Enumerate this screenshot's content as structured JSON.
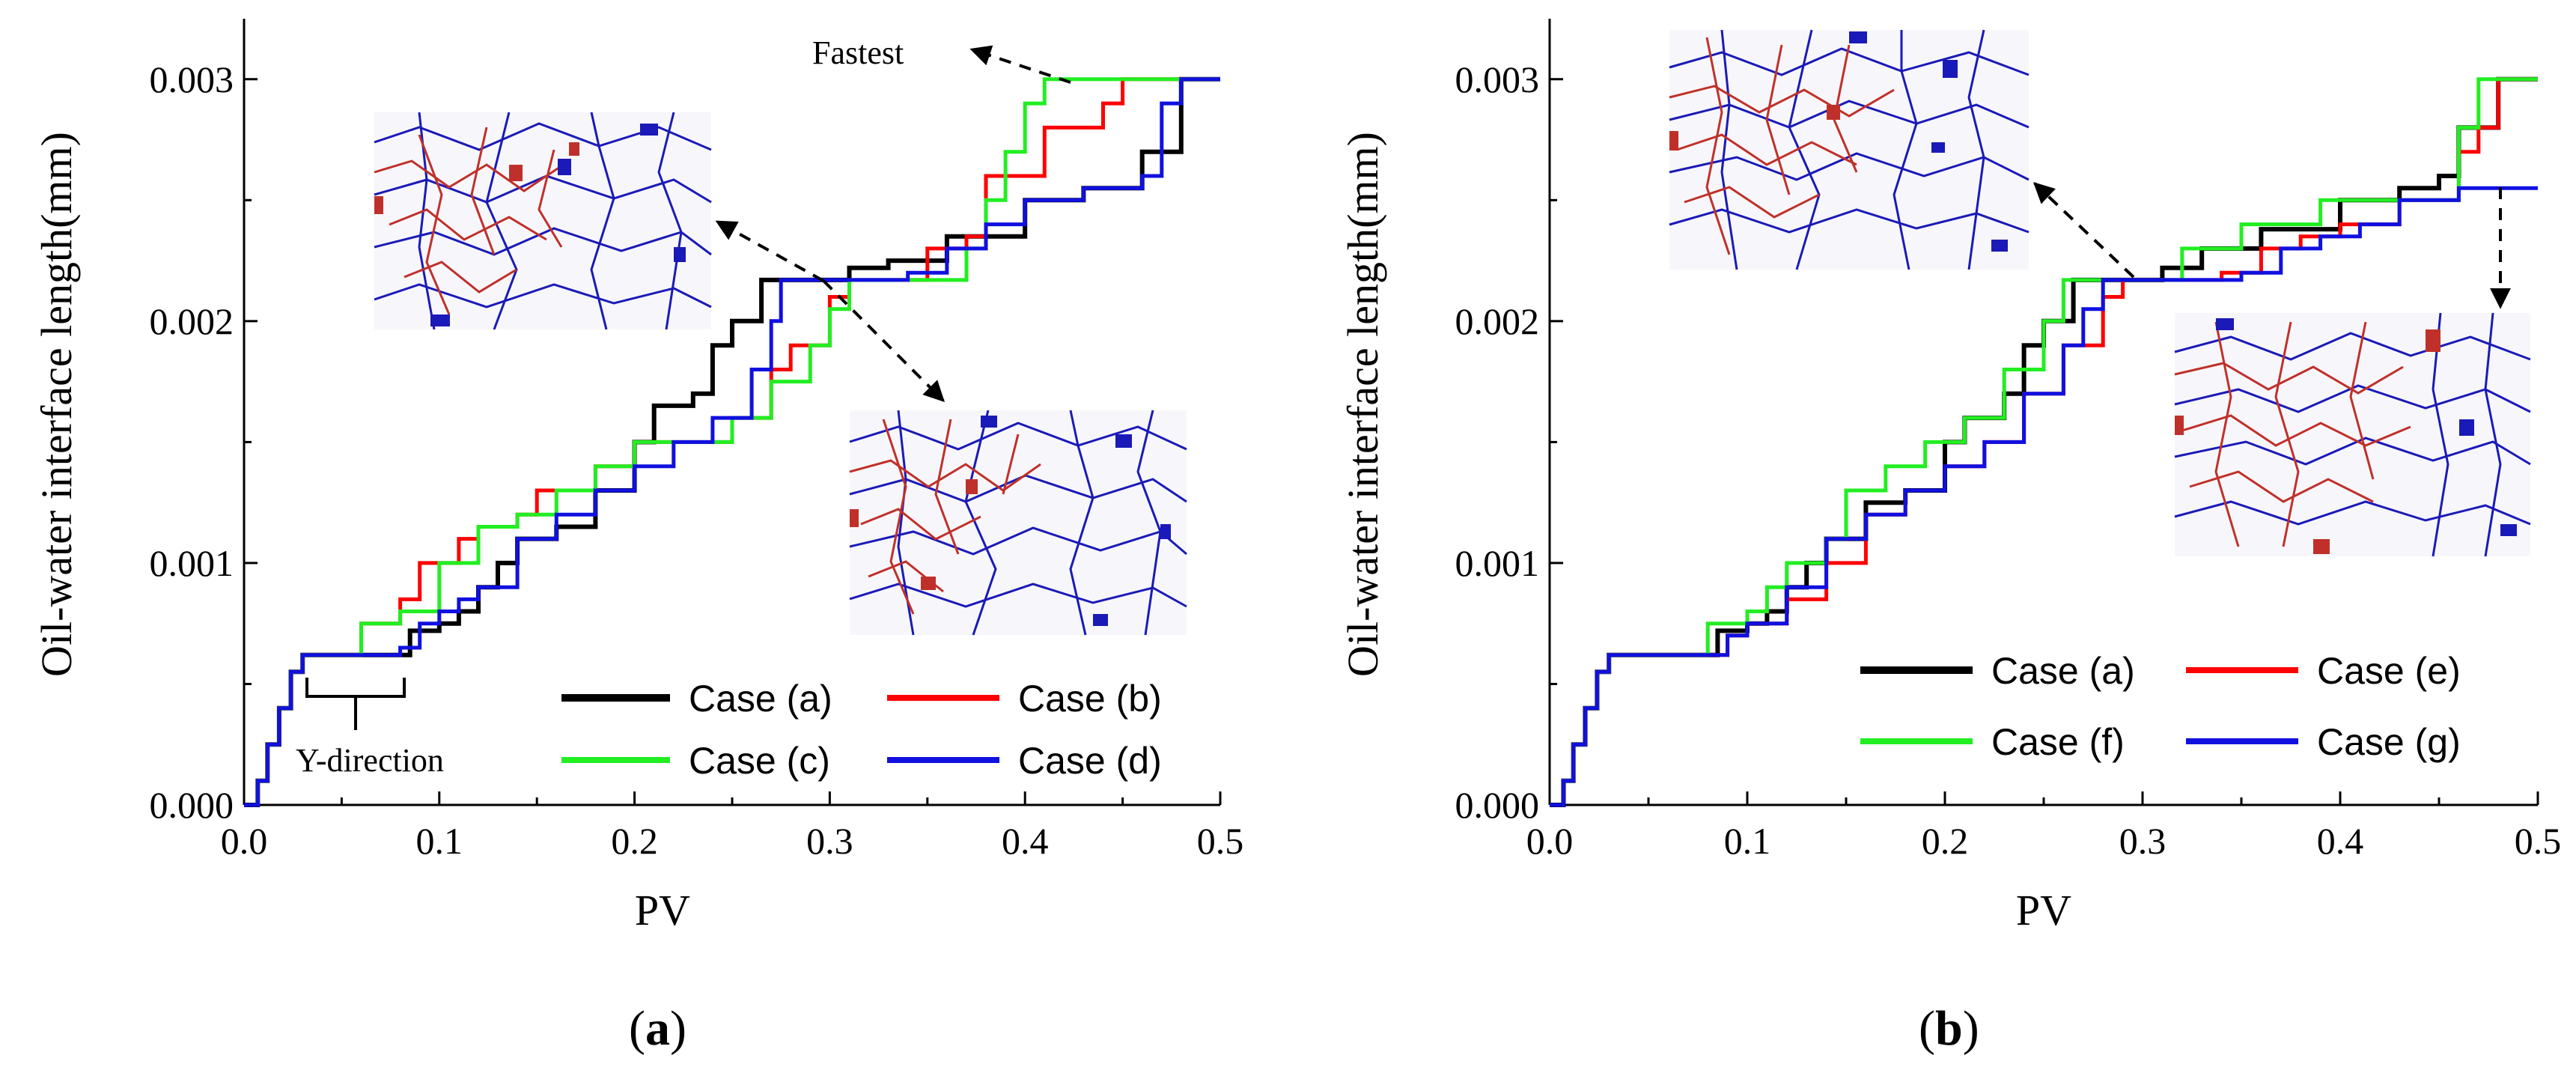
{
  "chart_data": [
    {
      "panel": "(a)",
      "panel_letter": "a",
      "type": "line",
      "xlabel": "PV",
      "ylabel": "Oil-water interface length(mm)",
      "xlim": [
        0,
        0.5
      ],
      "ylim": [
        0,
        0.00325
      ],
      "xticks": [
        0.0,
        0.1,
        0.2,
        0.3,
        0.4,
        0.5
      ],
      "xtick_labels": [
        "0.0",
        "0.1",
        "0.2",
        "0.3",
        "0.4",
        "0.5"
      ],
      "yticks": [
        0,
        0.001,
        0.002,
        0.003
      ],
      "ytick_labels": [
        "0.000",
        "0.001",
        "0.002",
        "0.003"
      ],
      "annotations": [
        "Fastest",
        "Y-direction"
      ],
      "insets": [
        "pore network snapshot (upper)",
        "pore network snapshot (lower)"
      ],
      "series": [
        {
          "name": "Case (a)",
          "color": "#000000",
          "points": [
            [
              0,
              0
            ],
            [
              0.007,
              0.0001
            ],
            [
              0.012,
              0.00025
            ],
            [
              0.018,
              0.0004
            ],
            [
              0.024,
              0.00055
            ],
            [
              0.03,
              0.00062
            ],
            [
              0.08,
              0.00062
            ],
            [
              0.085,
              0.00072
            ],
            [
              0.1,
              0.00075
            ],
            [
              0.11,
              0.0008
            ],
            [
              0.12,
              0.0009
            ],
            [
              0.13,
              0.001
            ],
            [
              0.14,
              0.0011
            ],
            [
              0.16,
              0.00115
            ],
            [
              0.18,
              0.0013
            ],
            [
              0.2,
              0.0015
            ],
            [
              0.21,
              0.00165
            ],
            [
              0.23,
              0.0017
            ],
            [
              0.24,
              0.0019
            ],
            [
              0.25,
              0.002
            ],
            [
              0.265,
              0.00217
            ],
            [
              0.3,
              0.00217
            ],
            [
              0.31,
              0.00222
            ],
            [
              0.33,
              0.00225
            ],
            [
              0.36,
              0.00235
            ],
            [
              0.4,
              0.0025
            ],
            [
              0.43,
              0.00255
            ],
            [
              0.46,
              0.0027
            ],
            [
              0.48,
              0.003
            ],
            [
              0.5,
              0.003
            ]
          ]
        },
        {
          "name": "Case (b)",
          "color": "#ff0000",
          "points": [
            [
              0,
              0
            ],
            [
              0.007,
              0.0001
            ],
            [
              0.012,
              0.00025
            ],
            [
              0.018,
              0.0004
            ],
            [
              0.024,
              0.00055
            ],
            [
              0.03,
              0.00062
            ],
            [
              0.055,
              0.00062
            ],
            [
              0.06,
              0.00075
            ],
            [
              0.08,
              0.00085
            ],
            [
              0.09,
              0.001
            ],
            [
              0.1,
              0.001
            ],
            [
              0.11,
              0.0011
            ],
            [
              0.12,
              0.00115
            ],
            [
              0.14,
              0.0012
            ],
            [
              0.15,
              0.0013
            ],
            [
              0.18,
              0.0014
            ],
            [
              0.2,
              0.0015
            ],
            [
              0.22,
              0.0015
            ],
            [
              0.25,
              0.0016
            ],
            [
              0.27,
              0.0018
            ],
            [
              0.28,
              0.0019
            ],
            [
              0.3,
              0.0021
            ],
            [
              0.31,
              0.00217
            ],
            [
              0.34,
              0.00217
            ],
            [
              0.35,
              0.0023
            ],
            [
              0.37,
              0.00235
            ],
            [
              0.38,
              0.0026
            ],
            [
              0.4,
              0.0026
            ],
            [
              0.41,
              0.0028
            ],
            [
              0.44,
              0.0029
            ],
            [
              0.45,
              0.003
            ],
            [
              0.5,
              0.003
            ]
          ]
        },
        {
          "name": "Case (c)",
          "color": "#22ee22",
          "points": [
            [
              0,
              0
            ],
            [
              0.007,
              0.0001
            ],
            [
              0.012,
              0.00025
            ],
            [
              0.018,
              0.0004
            ],
            [
              0.024,
              0.00055
            ],
            [
              0.03,
              0.00062
            ],
            [
              0.055,
              0.00062
            ],
            [
              0.06,
              0.00075
            ],
            [
              0.08,
              0.0008
            ],
            [
              0.1,
              0.001
            ],
            [
              0.12,
              0.00115
            ],
            [
              0.14,
              0.0012
            ],
            [
              0.16,
              0.0013
            ],
            [
              0.18,
              0.0014
            ],
            [
              0.2,
              0.0015
            ],
            [
              0.22,
              0.0015
            ],
            [
              0.25,
              0.0016
            ],
            [
              0.27,
              0.00175
            ],
            [
              0.29,
              0.0019
            ],
            [
              0.3,
              0.00205
            ],
            [
              0.31,
              0.00217
            ],
            [
              0.33,
              0.00217
            ],
            [
              0.36,
              0.00217
            ],
            [
              0.37,
              0.0023
            ],
            [
              0.38,
              0.0025
            ],
            [
              0.39,
              0.0027
            ],
            [
              0.4,
              0.0029
            ],
            [
              0.41,
              0.003
            ],
            [
              0.5,
              0.003
            ]
          ]
        },
        {
          "name": "Case (d)",
          "color": "#1010e0",
          "points": [
            [
              0,
              0
            ],
            [
              0.007,
              0.0001
            ],
            [
              0.012,
              0.00025
            ],
            [
              0.018,
              0.0004
            ],
            [
              0.024,
              0.00055
            ],
            [
              0.03,
              0.00062
            ],
            [
              0.07,
              0.00062
            ],
            [
              0.08,
              0.00065
            ],
            [
              0.09,
              0.00075
            ],
            [
              0.1,
              0.0008
            ],
            [
              0.11,
              0.00085
            ],
            [
              0.12,
              0.0009
            ],
            [
              0.14,
              0.0011
            ],
            [
              0.16,
              0.0012
            ],
            [
              0.18,
              0.0013
            ],
            [
              0.2,
              0.0014
            ],
            [
              0.22,
              0.0015
            ],
            [
              0.24,
              0.0016
            ],
            [
              0.26,
              0.0018
            ],
            [
              0.27,
              0.002
            ],
            [
              0.275,
              0.00217
            ],
            [
              0.3,
              0.00217
            ],
            [
              0.32,
              0.00217
            ],
            [
              0.34,
              0.0022
            ],
            [
              0.36,
              0.0023
            ],
            [
              0.38,
              0.0024
            ],
            [
              0.4,
              0.0025
            ],
            [
              0.43,
              0.00255
            ],
            [
              0.46,
              0.0026
            ],
            [
              0.47,
              0.0029
            ],
            [
              0.48,
              0.003
            ],
            [
              0.5,
              0.003
            ]
          ]
        }
      ]
    },
    {
      "panel": "(b)",
      "panel_letter": "b",
      "type": "line",
      "xlabel": "PV",
      "ylabel": "Oil-water interface length(mm)",
      "xlim": [
        0,
        0.5
      ],
      "ylim": [
        0,
        0.00325
      ],
      "xticks": [
        0.0,
        0.1,
        0.2,
        0.3,
        0.4,
        0.5
      ],
      "xtick_labels": [
        "0.0",
        "0.1",
        "0.2",
        "0.3",
        "0.4",
        "0.5"
      ],
      "yticks": [
        0,
        0.001,
        0.002,
        0.003
      ],
      "ytick_labels": [
        "0.000",
        "0.001",
        "0.002",
        "0.003"
      ],
      "annotations": [],
      "insets": [
        "pore network snapshot (upper)",
        "pore network snapshot (lower right)"
      ],
      "series": [
        {
          "name": "Case (a)",
          "color": "#000000",
          "points": [
            [
              0,
              0
            ],
            [
              0.007,
              0.0001
            ],
            [
              0.012,
              0.00025
            ],
            [
              0.018,
              0.0004
            ],
            [
              0.024,
              0.00055
            ],
            [
              0.03,
              0.00062
            ],
            [
              0.08,
              0.00062
            ],
            [
              0.085,
              0.00072
            ],
            [
              0.1,
              0.00075
            ],
            [
              0.11,
              0.0008
            ],
            [
              0.12,
              0.0009
            ],
            [
              0.13,
              0.001
            ],
            [
              0.14,
              0.0011
            ],
            [
              0.16,
              0.00125
            ],
            [
              0.18,
              0.0013
            ],
            [
              0.2,
              0.0015
            ],
            [
              0.21,
              0.0016
            ],
            [
              0.23,
              0.0017
            ],
            [
              0.24,
              0.0019
            ],
            [
              0.25,
              0.002
            ],
            [
              0.265,
              0.00217
            ],
            [
              0.3,
              0.00217
            ],
            [
              0.31,
              0.00222
            ],
            [
              0.33,
              0.0023
            ],
            [
              0.36,
              0.00238
            ],
            [
              0.4,
              0.0025
            ],
            [
              0.43,
              0.00255
            ],
            [
              0.45,
              0.0026
            ],
            [
              0.46,
              0.0028
            ],
            [
              0.48,
              0.003
            ],
            [
              0.5,
              0.003
            ]
          ]
        },
        {
          "name": "Case (e)",
          "color": "#ff0000",
          "points": [
            [
              0,
              0
            ],
            [
              0.007,
              0.0001
            ],
            [
              0.012,
              0.00025
            ],
            [
              0.018,
              0.0004
            ],
            [
              0.024,
              0.00055
            ],
            [
              0.03,
              0.00062
            ],
            [
              0.08,
              0.00062
            ],
            [
              0.09,
              0.0007
            ],
            [
              0.1,
              0.00075
            ],
            [
              0.12,
              0.00085
            ],
            [
              0.14,
              0.001
            ],
            [
              0.16,
              0.0012
            ],
            [
              0.18,
              0.0013
            ],
            [
              0.2,
              0.0014
            ],
            [
              0.22,
              0.0015
            ],
            [
              0.24,
              0.0017
            ],
            [
              0.26,
              0.0019
            ],
            [
              0.28,
              0.0021
            ],
            [
              0.29,
              0.00217
            ],
            [
              0.3,
              0.00217
            ],
            [
              0.32,
              0.00217
            ],
            [
              0.34,
              0.0022
            ],
            [
              0.36,
              0.0023
            ],
            [
              0.38,
              0.00235
            ],
            [
              0.4,
              0.0024
            ],
            [
              0.43,
              0.0025
            ],
            [
              0.45,
              0.0025
            ],
            [
              0.46,
              0.0027
            ],
            [
              0.47,
              0.0028
            ],
            [
              0.48,
              0.003
            ],
            [
              0.5,
              0.003
            ]
          ]
        },
        {
          "name": "Case (f)",
          "color": "#22ee22",
          "points": [
            [
              0,
              0
            ],
            [
              0.007,
              0.0001
            ],
            [
              0.012,
              0.00025
            ],
            [
              0.018,
              0.0004
            ],
            [
              0.024,
              0.00055
            ],
            [
              0.03,
              0.00062
            ],
            [
              0.07,
              0.00062
            ],
            [
              0.08,
              0.00075
            ],
            [
              0.1,
              0.0008
            ],
            [
              0.11,
              0.0009
            ],
            [
              0.12,
              0.001
            ],
            [
              0.14,
              0.0011
            ],
            [
              0.15,
              0.0013
            ],
            [
              0.17,
              0.0014
            ],
            [
              0.19,
              0.0015
            ],
            [
              0.21,
              0.0016
            ],
            [
              0.23,
              0.0018
            ],
            [
              0.25,
              0.002
            ],
            [
              0.26,
              0.00217
            ],
            [
              0.3,
              0.00217
            ],
            [
              0.32,
              0.0023
            ],
            [
              0.35,
              0.0024
            ],
            [
              0.38,
              0.0024
            ],
            [
              0.39,
              0.0025
            ],
            [
              0.4,
              0.0025
            ],
            [
              0.42,
              0.0025
            ],
            [
              0.44,
              0.0025
            ],
            [
              0.46,
              0.0028
            ],
            [
              0.47,
              0.003
            ],
            [
              0.5,
              0.003
            ]
          ]
        },
        {
          "name": "Case (g)",
          "color": "#1010e0",
          "points": [
            [
              0,
              0
            ],
            [
              0.007,
              0.0001
            ],
            [
              0.012,
              0.00025
            ],
            [
              0.018,
              0.0004
            ],
            [
              0.024,
              0.00055
            ],
            [
              0.03,
              0.00062
            ],
            [
              0.08,
              0.00062
            ],
            [
              0.09,
              0.0007
            ],
            [
              0.1,
              0.00075
            ],
            [
              0.12,
              0.0009
            ],
            [
              0.14,
              0.0011
            ],
            [
              0.16,
              0.0012
            ],
            [
              0.18,
              0.0013
            ],
            [
              0.2,
              0.0014
            ],
            [
              0.22,
              0.0015
            ],
            [
              0.24,
              0.0017
            ],
            [
              0.26,
              0.0019
            ],
            [
              0.27,
              0.00205
            ],
            [
              0.28,
              0.00217
            ],
            [
              0.3,
              0.00217
            ],
            [
              0.33,
              0.00217
            ],
            [
              0.35,
              0.0022
            ],
            [
              0.37,
              0.0023
            ],
            [
              0.39,
              0.00235
            ],
            [
              0.41,
              0.0024
            ],
            [
              0.43,
              0.0025
            ],
            [
              0.46,
              0.00255
            ],
            [
              0.5,
              0.00255
            ]
          ]
        }
      ]
    }
  ]
}
